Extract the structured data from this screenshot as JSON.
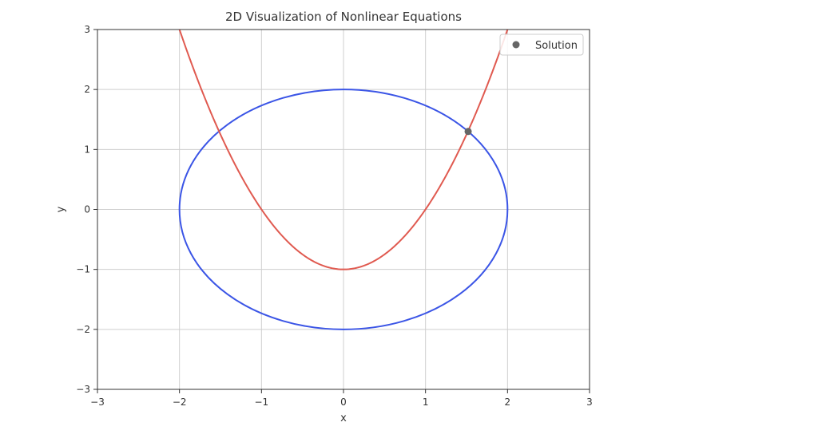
{
  "chart_data": {
    "type": "line",
    "title": "2D Visualization of Nonlinear Equations",
    "xlabel": "x",
    "ylabel": "y",
    "xlim": [
      -3,
      3
    ],
    "ylim": [
      -3,
      3
    ],
    "xticks": [
      -3,
      -2,
      -1,
      0,
      1,
      2,
      3
    ],
    "yticks": [
      -3,
      -2,
      -1,
      0,
      1,
      2,
      3
    ],
    "xtick_labels": [
      "−3",
      "−2",
      "−1",
      "0",
      "1",
      "2",
      "3"
    ],
    "ytick_labels": [
      "−3",
      "−2",
      "−1",
      "0",
      "1",
      "2",
      "3"
    ],
    "grid": true,
    "legend_position": "top-right",
    "series": [
      {
        "kind": "ellipse",
        "equation": "x^2/4 + y^2/4 = 1",
        "center": [
          0,
          0
        ],
        "radius_x": 2,
        "radius_y": 2,
        "color": "#3b55e6"
      },
      {
        "kind": "parabola",
        "equation": "y = x^2 - 1",
        "x_range": [
          -2,
          2
        ],
        "coefficients": {
          "a": 1,
          "b": 0,
          "c": -1
        },
        "color": "#e05a50"
      },
      {
        "name": "Solution",
        "kind": "point",
        "x": 1.52,
        "y": 1.3,
        "color": "#666666"
      }
    ]
  }
}
